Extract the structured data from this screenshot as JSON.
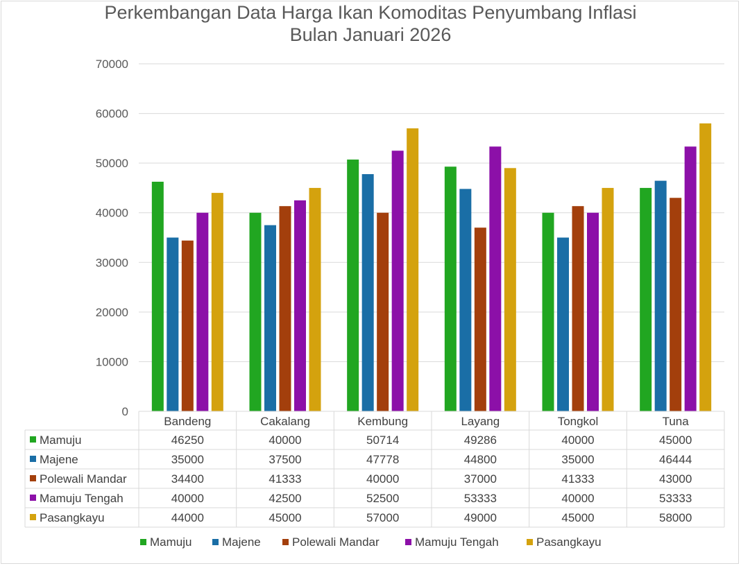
{
  "chart_data": {
    "type": "bar",
    "title_line1": "Perkembangan Data Harga Ikan Komoditas Penyumbang Inflasi",
    "title_line2": "Bulan Januari 2026",
    "categories": [
      "Bandeng",
      "Cakalang",
      "Kembung",
      "Layang",
      "Tongkol",
      "Tuna"
    ],
    "ylim": [
      0,
      70000
    ],
    "yticks": [
      "0",
      "10000",
      "20000",
      "30000",
      "40000",
      "50000",
      "60000",
      "70000"
    ],
    "grid": true,
    "legend_position": "bottom",
    "data_table": true,
    "series": [
      {
        "name": "Mamuju",
        "color": "#21a621",
        "values": [
          46250,
          40000,
          50714,
          49286,
          40000,
          45000
        ]
      },
      {
        "name": "Majene",
        "color": "#1a6ea6",
        "values": [
          35000,
          37500,
          47778,
          44800,
          35000,
          46444
        ]
      },
      {
        "name": "Polewali Mandar",
        "color": "#a33f0c",
        "values": [
          34400,
          41333,
          40000,
          37000,
          41333,
          43000
        ]
      },
      {
        "name": "Mamuju Tengah",
        "color": "#8c10a8",
        "values": [
          40000,
          42500,
          52500,
          53333,
          40000,
          53333
        ]
      },
      {
        "name": "Pasangkayu",
        "color": "#d4a20e",
        "values": [
          44000,
          45000,
          57000,
          49000,
          45000,
          58000
        ]
      }
    ]
  }
}
